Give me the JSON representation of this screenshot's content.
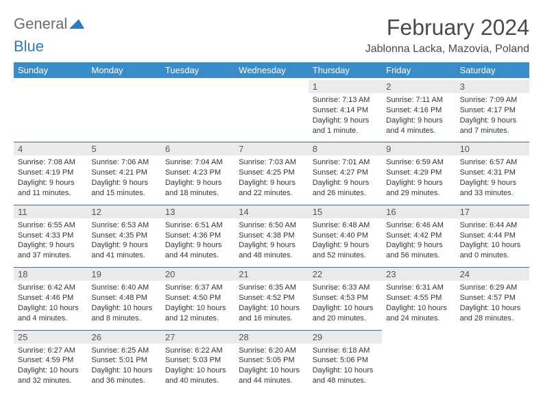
{
  "brand": {
    "general": "General",
    "blue": "Blue",
    "tri_color": "#2f78c2"
  },
  "title": "February 2024",
  "location": "Jablonna Lacka, Mazovia, Poland",
  "colors": {
    "header_bg": "#3a8bc9",
    "header_text": "#ffffff",
    "band_bg": "#eaeaea",
    "band_border": "#4a6a8a",
    "body_text": "#333333",
    "title_text": "#4a4a4a"
  },
  "day_names": [
    "Sunday",
    "Monday",
    "Tuesday",
    "Wednesday",
    "Thursday",
    "Friday",
    "Saturday"
  ],
  "weeks": [
    [
      null,
      null,
      null,
      null,
      {
        "n": "1",
        "sr": "Sunrise: 7:13 AM",
        "ss": "Sunset: 4:14 PM",
        "d1": "Daylight: 9 hours",
        "d2": "and 1 minute."
      },
      {
        "n": "2",
        "sr": "Sunrise: 7:11 AM",
        "ss": "Sunset: 4:16 PM",
        "d1": "Daylight: 9 hours",
        "d2": "and 4 minutes."
      },
      {
        "n": "3",
        "sr": "Sunrise: 7:09 AM",
        "ss": "Sunset: 4:17 PM",
        "d1": "Daylight: 9 hours",
        "d2": "and 7 minutes."
      }
    ],
    [
      {
        "n": "4",
        "sr": "Sunrise: 7:08 AM",
        "ss": "Sunset: 4:19 PM",
        "d1": "Daylight: 9 hours",
        "d2": "and 11 minutes."
      },
      {
        "n": "5",
        "sr": "Sunrise: 7:06 AM",
        "ss": "Sunset: 4:21 PM",
        "d1": "Daylight: 9 hours",
        "d2": "and 15 minutes."
      },
      {
        "n": "6",
        "sr": "Sunrise: 7:04 AM",
        "ss": "Sunset: 4:23 PM",
        "d1": "Daylight: 9 hours",
        "d2": "and 18 minutes."
      },
      {
        "n": "7",
        "sr": "Sunrise: 7:03 AM",
        "ss": "Sunset: 4:25 PM",
        "d1": "Daylight: 9 hours",
        "d2": "and 22 minutes."
      },
      {
        "n": "8",
        "sr": "Sunrise: 7:01 AM",
        "ss": "Sunset: 4:27 PM",
        "d1": "Daylight: 9 hours",
        "d2": "and 26 minutes."
      },
      {
        "n": "9",
        "sr": "Sunrise: 6:59 AM",
        "ss": "Sunset: 4:29 PM",
        "d1": "Daylight: 9 hours",
        "d2": "and 29 minutes."
      },
      {
        "n": "10",
        "sr": "Sunrise: 6:57 AM",
        "ss": "Sunset: 4:31 PM",
        "d1": "Daylight: 9 hours",
        "d2": "and 33 minutes."
      }
    ],
    [
      {
        "n": "11",
        "sr": "Sunrise: 6:55 AM",
        "ss": "Sunset: 4:33 PM",
        "d1": "Daylight: 9 hours",
        "d2": "and 37 minutes."
      },
      {
        "n": "12",
        "sr": "Sunrise: 6:53 AM",
        "ss": "Sunset: 4:35 PM",
        "d1": "Daylight: 9 hours",
        "d2": "and 41 minutes."
      },
      {
        "n": "13",
        "sr": "Sunrise: 6:51 AM",
        "ss": "Sunset: 4:36 PM",
        "d1": "Daylight: 9 hours",
        "d2": "and 44 minutes."
      },
      {
        "n": "14",
        "sr": "Sunrise: 6:50 AM",
        "ss": "Sunset: 4:38 PM",
        "d1": "Daylight: 9 hours",
        "d2": "and 48 minutes."
      },
      {
        "n": "15",
        "sr": "Sunrise: 6:48 AM",
        "ss": "Sunset: 4:40 PM",
        "d1": "Daylight: 9 hours",
        "d2": "and 52 minutes."
      },
      {
        "n": "16",
        "sr": "Sunrise: 6:46 AM",
        "ss": "Sunset: 4:42 PM",
        "d1": "Daylight: 9 hours",
        "d2": "and 56 minutes."
      },
      {
        "n": "17",
        "sr": "Sunrise: 6:44 AM",
        "ss": "Sunset: 4:44 PM",
        "d1": "Daylight: 10 hours",
        "d2": "and 0 minutes."
      }
    ],
    [
      {
        "n": "18",
        "sr": "Sunrise: 6:42 AM",
        "ss": "Sunset: 4:46 PM",
        "d1": "Daylight: 10 hours",
        "d2": "and 4 minutes."
      },
      {
        "n": "19",
        "sr": "Sunrise: 6:40 AM",
        "ss": "Sunset: 4:48 PM",
        "d1": "Daylight: 10 hours",
        "d2": "and 8 minutes."
      },
      {
        "n": "20",
        "sr": "Sunrise: 6:37 AM",
        "ss": "Sunset: 4:50 PM",
        "d1": "Daylight: 10 hours",
        "d2": "and 12 minutes."
      },
      {
        "n": "21",
        "sr": "Sunrise: 6:35 AM",
        "ss": "Sunset: 4:52 PM",
        "d1": "Daylight: 10 hours",
        "d2": "and 16 minutes."
      },
      {
        "n": "22",
        "sr": "Sunrise: 6:33 AM",
        "ss": "Sunset: 4:53 PM",
        "d1": "Daylight: 10 hours",
        "d2": "and 20 minutes."
      },
      {
        "n": "23",
        "sr": "Sunrise: 6:31 AM",
        "ss": "Sunset: 4:55 PM",
        "d1": "Daylight: 10 hours",
        "d2": "and 24 minutes."
      },
      {
        "n": "24",
        "sr": "Sunrise: 6:29 AM",
        "ss": "Sunset: 4:57 PM",
        "d1": "Daylight: 10 hours",
        "d2": "and 28 minutes."
      }
    ],
    [
      {
        "n": "25",
        "sr": "Sunrise: 6:27 AM",
        "ss": "Sunset: 4:59 PM",
        "d1": "Daylight: 10 hours",
        "d2": "and 32 minutes."
      },
      {
        "n": "26",
        "sr": "Sunrise: 6:25 AM",
        "ss": "Sunset: 5:01 PM",
        "d1": "Daylight: 10 hours",
        "d2": "and 36 minutes."
      },
      {
        "n": "27",
        "sr": "Sunrise: 6:22 AM",
        "ss": "Sunset: 5:03 PM",
        "d1": "Daylight: 10 hours",
        "d2": "and 40 minutes."
      },
      {
        "n": "28",
        "sr": "Sunrise: 6:20 AM",
        "ss": "Sunset: 5:05 PM",
        "d1": "Daylight: 10 hours",
        "d2": "and 44 minutes."
      },
      {
        "n": "29",
        "sr": "Sunrise: 6:18 AM",
        "ss": "Sunset: 5:06 PM",
        "d1": "Daylight: 10 hours",
        "d2": "and 48 minutes."
      },
      null,
      null
    ]
  ]
}
